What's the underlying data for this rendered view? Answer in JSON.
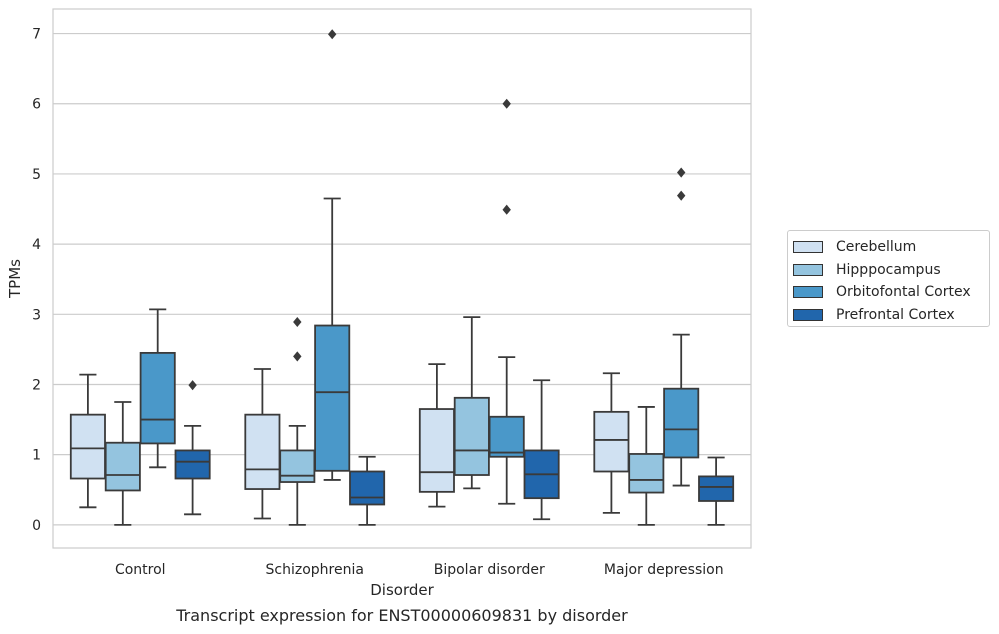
{
  "chart_data": {
    "type": "box",
    "title": "Transcript expression for ENST00000609831 by disorder",
    "xlabel": "Disorder",
    "ylabel": "TPMs",
    "ylim": [
      -0.33,
      7.35
    ],
    "yticks": [
      "0",
      "1",
      "2",
      "3",
      "4",
      "5",
      "6",
      "7"
    ],
    "grid": true,
    "legend_position": "right",
    "categories": [
      "Control",
      "Schizophrenia",
      "Bipolar disorder",
      "Major depression"
    ],
    "series": [
      {
        "name": "Cerebellum",
        "color": "#d0e1f2",
        "boxes": [
          {
            "whislo": 0.25,
            "q1": 0.66,
            "med": 1.09,
            "q3": 1.57,
            "whishi": 2.14,
            "fliers": []
          },
          {
            "whislo": 0.09,
            "q1": 0.51,
            "med": 0.79,
            "q3": 1.57,
            "whishi": 2.22,
            "fliers": []
          },
          {
            "whislo": 0.26,
            "q1": 0.47,
            "med": 0.75,
            "q3": 1.65,
            "whishi": 2.29,
            "fliers": []
          },
          {
            "whislo": 0.17,
            "q1": 0.76,
            "med": 1.21,
            "q3": 1.61,
            "whishi": 2.16,
            "fliers": []
          }
        ]
      },
      {
        "name": "Hipppocampus",
        "color": "#94c4df",
        "boxes": [
          {
            "whislo": 0.0,
            "q1": 0.49,
            "med": 0.71,
            "q3": 1.17,
            "whishi": 1.75,
            "fliers": []
          },
          {
            "whislo": 0.0,
            "q1": 0.61,
            "med": 0.7,
            "q3": 1.06,
            "whishi": 1.41,
            "fliers": [
              2.4,
              2.89
            ]
          },
          {
            "whislo": 0.52,
            "q1": 0.71,
            "med": 1.06,
            "q3": 1.81,
            "whishi": 2.96,
            "fliers": []
          },
          {
            "whislo": 0.0,
            "q1": 0.46,
            "med": 0.64,
            "q3": 1.01,
            "whishi": 1.68,
            "fliers": []
          }
        ]
      },
      {
        "name": "Orbitofontal Cortex",
        "color": "#4a98c9",
        "boxes": [
          {
            "whislo": 0.82,
            "q1": 1.16,
            "med": 1.5,
            "q3": 2.45,
            "whishi": 3.07,
            "fliers": []
          },
          {
            "whislo": 0.64,
            "q1": 0.77,
            "med": 1.89,
            "q3": 2.84,
            "whishi": 4.65,
            "fliers": [
              6.99
            ]
          },
          {
            "whislo": 0.3,
            "q1": 0.97,
            "med": 1.03,
            "q3": 1.54,
            "whishi": 2.39,
            "fliers": [
              4.49,
              6.0
            ]
          },
          {
            "whislo": 0.56,
            "q1": 0.96,
            "med": 1.36,
            "q3": 1.94,
            "whishi": 2.71,
            "fliers": [
              4.69,
              5.02
            ]
          }
        ]
      },
      {
        "name": "Prefrontal Cortex",
        "color": "#2166ac",
        "boxes": [
          {
            "whislo": 0.15,
            "q1": 0.66,
            "med": 0.9,
            "q3": 1.06,
            "whishi": 1.41,
            "fliers": [
              1.99
            ]
          },
          {
            "whislo": 0.0,
            "q1": 0.29,
            "med": 0.39,
            "q3": 0.76,
            "whishi": 0.97,
            "fliers": []
          },
          {
            "whislo": 0.08,
            "q1": 0.38,
            "med": 0.72,
            "q3": 1.06,
            "whishi": 2.06,
            "fliers": []
          },
          {
            "whislo": 0.0,
            "q1": 0.34,
            "med": 0.54,
            "q3": 0.69,
            "whishi": 0.96,
            "fliers": []
          }
        ]
      }
    ]
  }
}
